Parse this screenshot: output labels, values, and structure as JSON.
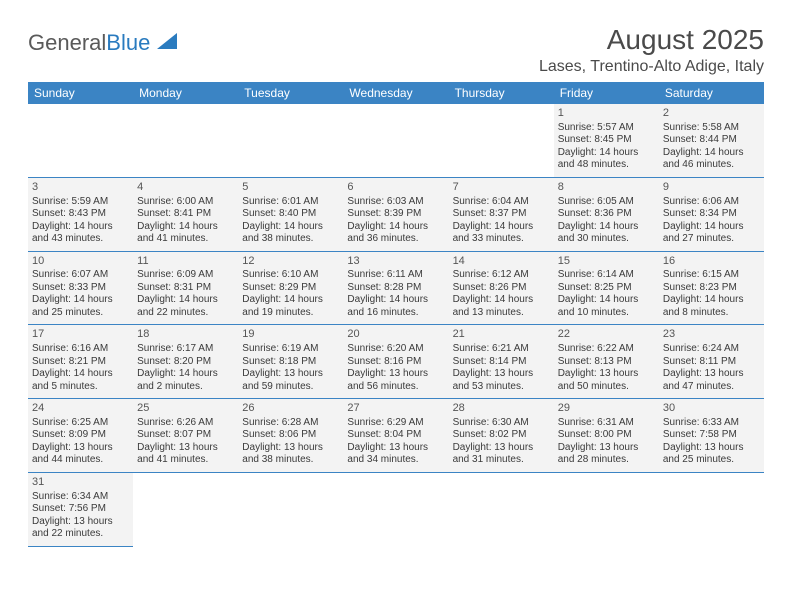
{
  "logo": {
    "text1": "General",
    "text2": "Blue"
  },
  "title": "August 2025",
  "location": "Lases, Trentino-Alto Adige, Italy",
  "colors": {
    "header_bg": "#3b84c4",
    "header_text": "#ffffff",
    "cell_bg": "#f3f3f3",
    "border": "#3b84c4",
    "logo_gray": "#5a5a5a",
    "logo_blue": "#2a7bbf"
  },
  "day_headers": [
    "Sunday",
    "Monday",
    "Tuesday",
    "Wednesday",
    "Thursday",
    "Friday",
    "Saturday"
  ],
  "weeks": [
    [
      null,
      null,
      null,
      null,
      null,
      {
        "n": "1",
        "sr": "Sunrise: 5:57 AM",
        "ss": "Sunset: 8:45 PM",
        "dl": "Daylight: 14 hours and 48 minutes."
      },
      {
        "n": "2",
        "sr": "Sunrise: 5:58 AM",
        "ss": "Sunset: 8:44 PM",
        "dl": "Daylight: 14 hours and 46 minutes."
      }
    ],
    [
      {
        "n": "3",
        "sr": "Sunrise: 5:59 AM",
        "ss": "Sunset: 8:43 PM",
        "dl": "Daylight: 14 hours and 43 minutes."
      },
      {
        "n": "4",
        "sr": "Sunrise: 6:00 AM",
        "ss": "Sunset: 8:41 PM",
        "dl": "Daylight: 14 hours and 41 minutes."
      },
      {
        "n": "5",
        "sr": "Sunrise: 6:01 AM",
        "ss": "Sunset: 8:40 PM",
        "dl": "Daylight: 14 hours and 38 minutes."
      },
      {
        "n": "6",
        "sr": "Sunrise: 6:03 AM",
        "ss": "Sunset: 8:39 PM",
        "dl": "Daylight: 14 hours and 36 minutes."
      },
      {
        "n": "7",
        "sr": "Sunrise: 6:04 AM",
        "ss": "Sunset: 8:37 PM",
        "dl": "Daylight: 14 hours and 33 minutes."
      },
      {
        "n": "8",
        "sr": "Sunrise: 6:05 AM",
        "ss": "Sunset: 8:36 PM",
        "dl": "Daylight: 14 hours and 30 minutes."
      },
      {
        "n": "9",
        "sr": "Sunrise: 6:06 AM",
        "ss": "Sunset: 8:34 PM",
        "dl": "Daylight: 14 hours and 27 minutes."
      }
    ],
    [
      {
        "n": "10",
        "sr": "Sunrise: 6:07 AM",
        "ss": "Sunset: 8:33 PM",
        "dl": "Daylight: 14 hours and 25 minutes."
      },
      {
        "n": "11",
        "sr": "Sunrise: 6:09 AM",
        "ss": "Sunset: 8:31 PM",
        "dl": "Daylight: 14 hours and 22 minutes."
      },
      {
        "n": "12",
        "sr": "Sunrise: 6:10 AM",
        "ss": "Sunset: 8:29 PM",
        "dl": "Daylight: 14 hours and 19 minutes."
      },
      {
        "n": "13",
        "sr": "Sunrise: 6:11 AM",
        "ss": "Sunset: 8:28 PM",
        "dl": "Daylight: 14 hours and 16 minutes."
      },
      {
        "n": "14",
        "sr": "Sunrise: 6:12 AM",
        "ss": "Sunset: 8:26 PM",
        "dl": "Daylight: 14 hours and 13 minutes."
      },
      {
        "n": "15",
        "sr": "Sunrise: 6:14 AM",
        "ss": "Sunset: 8:25 PM",
        "dl": "Daylight: 14 hours and 10 minutes."
      },
      {
        "n": "16",
        "sr": "Sunrise: 6:15 AM",
        "ss": "Sunset: 8:23 PM",
        "dl": "Daylight: 14 hours and 8 minutes."
      }
    ],
    [
      {
        "n": "17",
        "sr": "Sunrise: 6:16 AM",
        "ss": "Sunset: 8:21 PM",
        "dl": "Daylight: 14 hours and 5 minutes."
      },
      {
        "n": "18",
        "sr": "Sunrise: 6:17 AM",
        "ss": "Sunset: 8:20 PM",
        "dl": "Daylight: 14 hours and 2 minutes."
      },
      {
        "n": "19",
        "sr": "Sunrise: 6:19 AM",
        "ss": "Sunset: 8:18 PM",
        "dl": "Daylight: 13 hours and 59 minutes."
      },
      {
        "n": "20",
        "sr": "Sunrise: 6:20 AM",
        "ss": "Sunset: 8:16 PM",
        "dl": "Daylight: 13 hours and 56 minutes."
      },
      {
        "n": "21",
        "sr": "Sunrise: 6:21 AM",
        "ss": "Sunset: 8:14 PM",
        "dl": "Daylight: 13 hours and 53 minutes."
      },
      {
        "n": "22",
        "sr": "Sunrise: 6:22 AM",
        "ss": "Sunset: 8:13 PM",
        "dl": "Daylight: 13 hours and 50 minutes."
      },
      {
        "n": "23",
        "sr": "Sunrise: 6:24 AM",
        "ss": "Sunset: 8:11 PM",
        "dl": "Daylight: 13 hours and 47 minutes."
      }
    ],
    [
      {
        "n": "24",
        "sr": "Sunrise: 6:25 AM",
        "ss": "Sunset: 8:09 PM",
        "dl": "Daylight: 13 hours and 44 minutes."
      },
      {
        "n": "25",
        "sr": "Sunrise: 6:26 AM",
        "ss": "Sunset: 8:07 PM",
        "dl": "Daylight: 13 hours and 41 minutes."
      },
      {
        "n": "26",
        "sr": "Sunrise: 6:28 AM",
        "ss": "Sunset: 8:06 PM",
        "dl": "Daylight: 13 hours and 38 minutes."
      },
      {
        "n": "27",
        "sr": "Sunrise: 6:29 AM",
        "ss": "Sunset: 8:04 PM",
        "dl": "Daylight: 13 hours and 34 minutes."
      },
      {
        "n": "28",
        "sr": "Sunrise: 6:30 AM",
        "ss": "Sunset: 8:02 PM",
        "dl": "Daylight: 13 hours and 31 minutes."
      },
      {
        "n": "29",
        "sr": "Sunrise: 6:31 AM",
        "ss": "Sunset: 8:00 PM",
        "dl": "Daylight: 13 hours and 28 minutes."
      },
      {
        "n": "30",
        "sr": "Sunrise: 6:33 AM",
        "ss": "Sunset: 7:58 PM",
        "dl": "Daylight: 13 hours and 25 minutes."
      }
    ],
    [
      {
        "n": "31",
        "sr": "Sunrise: 6:34 AM",
        "ss": "Sunset: 7:56 PM",
        "dl": "Daylight: 13 hours and 22 minutes."
      },
      null,
      null,
      null,
      null,
      null,
      null
    ]
  ]
}
